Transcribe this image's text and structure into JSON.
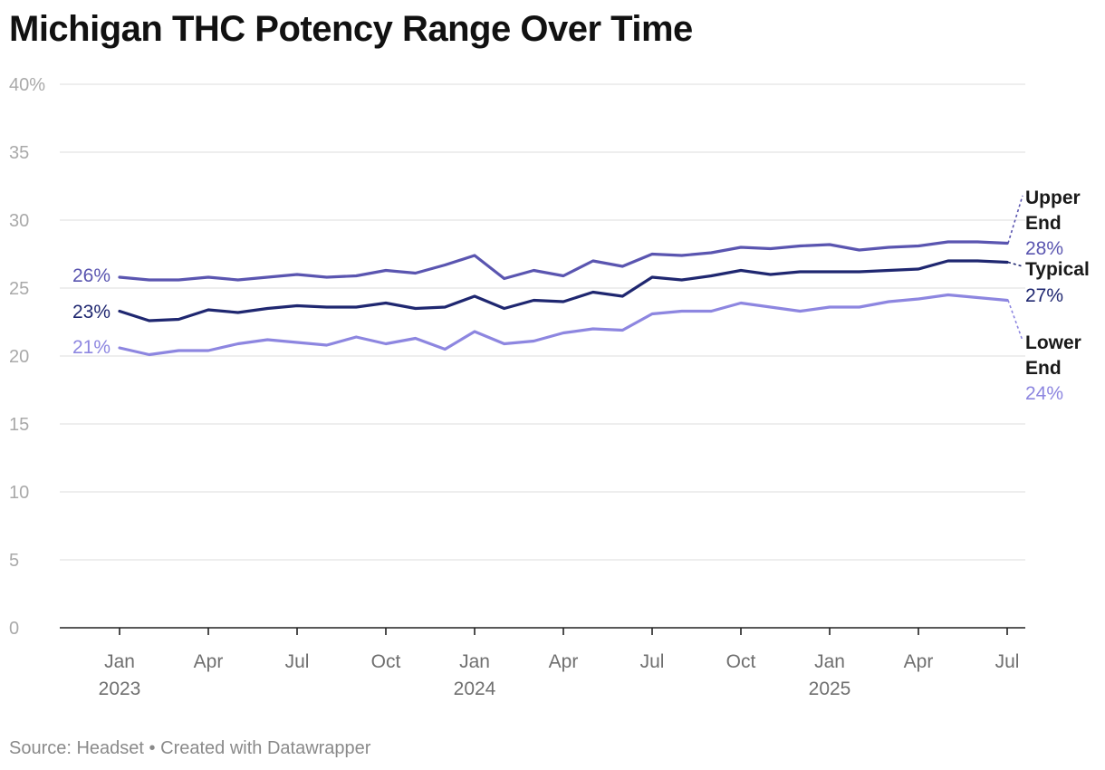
{
  "title": "Michigan THC Potency Range Over Time",
  "footer": {
    "source_text": "Source: Headset",
    "separator": "•",
    "credit_text": "Created with Datawrapper"
  },
  "colors": {
    "upper": "#5a55b0",
    "typical": "#1f2770",
    "lower": "#8d86e0"
  },
  "chart_data": {
    "type": "line",
    "title": "Michigan THC Potency Range Over Time",
    "xlabel": "",
    "ylabel": "",
    "ylim": [
      0,
      40
    ],
    "y_ticks": [
      0,
      5,
      10,
      15,
      20,
      25,
      30,
      35,
      40
    ],
    "y_tick_labels": [
      "0",
      "5",
      "10",
      "15",
      "20",
      "25",
      "30",
      "35",
      "40%"
    ],
    "x_months": [
      "2023-01",
      "2023-02",
      "2023-03",
      "2023-04",
      "2023-05",
      "2023-06",
      "2023-07",
      "2023-08",
      "2023-09",
      "2023-10",
      "2023-11",
      "2023-12",
      "2024-01",
      "2024-02",
      "2024-03",
      "2024-04",
      "2024-05",
      "2024-06",
      "2024-07",
      "2024-08",
      "2024-09",
      "2024-10",
      "2024-11",
      "2024-12",
      "2025-01",
      "2025-02",
      "2025-03",
      "2025-04",
      "2025-05",
      "2025-06",
      "2025-07"
    ],
    "x_ticks": [
      {
        "index": 0,
        "month": "Jan",
        "year": "2023"
      },
      {
        "index": 3,
        "month": "Apr",
        "year": ""
      },
      {
        "index": 6,
        "month": "Jul",
        "year": ""
      },
      {
        "index": 9,
        "month": "Oct",
        "year": ""
      },
      {
        "index": 12,
        "month": "Jan",
        "year": "2024"
      },
      {
        "index": 15,
        "month": "Apr",
        "year": ""
      },
      {
        "index": 18,
        "month": "Jul",
        "year": ""
      },
      {
        "index": 21,
        "month": "Oct",
        "year": ""
      },
      {
        "index": 24,
        "month": "Jan",
        "year": "2025"
      },
      {
        "index": 27,
        "month": "Apr",
        "year": ""
      },
      {
        "index": 30,
        "month": "Jul",
        "year": ""
      }
    ],
    "series": [
      {
        "key": "upper",
        "name_lines": [
          "Upper",
          "End"
        ],
        "start_label": "26%",
        "end_label": "28%",
        "values": [
          25.8,
          25.6,
          25.6,
          25.8,
          25.6,
          25.8,
          26.0,
          25.8,
          25.9,
          26.3,
          26.1,
          26.7,
          27.4,
          25.7,
          26.3,
          25.9,
          27.0,
          26.6,
          27.5,
          27.4,
          27.6,
          28.0,
          27.9,
          28.1,
          28.2,
          27.8,
          28.0,
          28.1,
          28.4,
          28.4,
          28.3
        ]
      },
      {
        "key": "typical",
        "name_lines": [
          "Typical"
        ],
        "start_label": "23%",
        "end_label": "27%",
        "values": [
          23.3,
          22.6,
          22.7,
          23.4,
          23.2,
          23.5,
          23.7,
          23.6,
          23.6,
          23.9,
          23.5,
          23.6,
          24.4,
          23.5,
          24.1,
          24.0,
          24.7,
          24.4,
          25.8,
          25.6,
          25.9,
          26.3,
          26.0,
          26.2,
          26.2,
          26.2,
          26.3,
          26.4,
          27.0,
          27.0,
          26.9
        ]
      },
      {
        "key": "lower",
        "name_lines": [
          "Lower",
          "End"
        ],
        "start_label": "21%",
        "end_label": "24%",
        "values": [
          20.6,
          20.1,
          20.4,
          20.4,
          20.9,
          21.2,
          21.0,
          20.8,
          21.4,
          20.9,
          21.3,
          20.5,
          21.8,
          20.9,
          21.1,
          21.7,
          22.0,
          21.9,
          23.1,
          23.3,
          23.3,
          23.9,
          23.6,
          23.3,
          23.6,
          23.6,
          24.0,
          24.2,
          24.5,
          24.3,
          24.1
        ]
      }
    ]
  }
}
